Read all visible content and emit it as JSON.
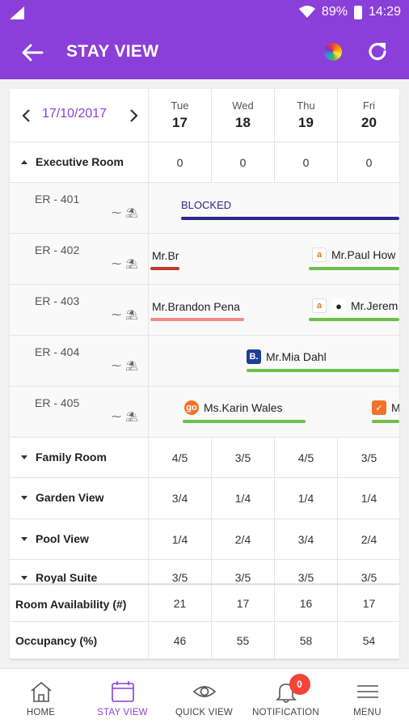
{
  "status_bar": {
    "battery": "89%",
    "time": "14:29"
  },
  "app_bar": {
    "title": "STAY VIEW"
  },
  "date_nav": {
    "current_date": "17/10/2017"
  },
  "days": [
    {
      "dow": "Tue",
      "num": "17"
    },
    {
      "dow": "Wed",
      "num": "18"
    },
    {
      "dow": "Thu",
      "num": "19"
    },
    {
      "dow": "Fri",
      "num": "20"
    }
  ],
  "executive_room": {
    "label": "Executive Room",
    "values": [
      "0",
      "0",
      "0",
      "0"
    ]
  },
  "rooms": [
    {
      "name": "ER - 401",
      "icons": "⁓ ⛱"
    },
    {
      "name": "ER - 402",
      "icons": "⁓ ⛱"
    },
    {
      "name": "ER - 403",
      "icons": "⁓ ⛱"
    },
    {
      "name": "ER - 404",
      "icons": "⁓ ⛱"
    },
    {
      "name": "ER - 405",
      "icons": "⁓ ⛱"
    }
  ],
  "bookings": {
    "blocked": "BLOCKED",
    "mr_br": "Mr.Br",
    "paul": "Mr.Paul How",
    "brandon": "Mr.Brandon Pena",
    "jerem": "Mr.Jerem",
    "mia": "Mr.Mia Dahl",
    "karin": "Ms.Karin Wales",
    "m": "M"
  },
  "categories": [
    {
      "label": "Family Room",
      "values": [
        "4/5",
        "3/5",
        "4/5",
        "3/5"
      ]
    },
    {
      "label": "Garden View",
      "values": [
        "3/4",
        "1/4",
        "1/4",
        "1/4"
      ]
    },
    {
      "label": "Pool View",
      "values": [
        "1/4",
        "2/4",
        "3/4",
        "2/4"
      ]
    },
    {
      "label": "Royal Suite",
      "values": [
        "3/5",
        "3/5",
        "3/5",
        "3/5"
      ]
    }
  ],
  "summary": [
    {
      "label": "Room Availability (#)",
      "values": [
        "21",
        "17",
        "16",
        "17"
      ]
    },
    {
      "label": "Occupancy (%)",
      "values": [
        "46",
        "55",
        "58",
        "54"
      ]
    }
  ],
  "bottom_nav": {
    "home": "HOME",
    "stay_view": "STAY VIEW",
    "quick_view": "QUICK VIEW",
    "notification": "NOTIFICATION",
    "notification_count": "0",
    "menu": "MENU"
  },
  "colors": {
    "brand": "#8a3fd9",
    "blocked": "#2a2a8a",
    "green": "#6cc04a",
    "red": "#c0392b",
    "pink": "#f28b82"
  },
  "icons": [
    "back-arrow-icon",
    "color-wheel-icon",
    "refresh-icon",
    "chevron-left-icon",
    "chevron-right-icon",
    "home-icon",
    "calendar-icon",
    "eye-icon",
    "bell-icon",
    "menu-icon"
  ]
}
